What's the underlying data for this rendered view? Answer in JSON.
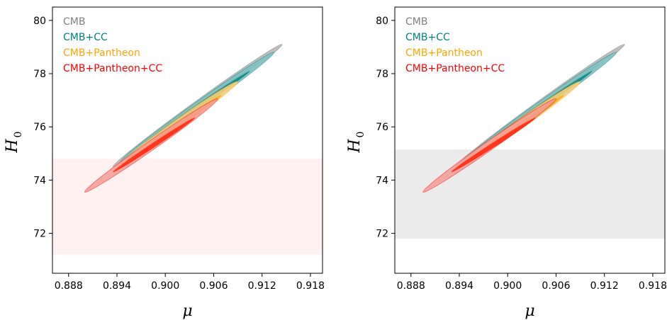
{
  "chart_data": [
    {
      "type": "contour",
      "title": "",
      "xlabel": "μ",
      "ylabel": {
        "main": "H",
        "sub": "0"
      },
      "xlim": [
        0.886,
        0.9195
      ],
      "ylim": [
        70.5,
        80.5
      ],
      "xticks": [
        {
          "value": 0.888,
          "label": "0.888"
        },
        {
          "value": 0.894,
          "label": "0.894"
        },
        {
          "value": 0.9,
          "label": "0.900"
        },
        {
          "value": 0.906,
          "label": "0.906"
        },
        {
          "value": 0.912,
          "label": "0.912"
        },
        {
          "value": 0.918,
          "label": "0.918"
        }
      ],
      "yticks": [
        {
          "value": 72,
          "label": "72"
        },
        {
          "value": 74,
          "label": "74"
        },
        {
          "value": 76,
          "label": "76"
        },
        {
          "value": 78,
          "label": "78"
        },
        {
          "value": 80,
          "label": "80"
        }
      ],
      "band": {
        "y": [
          71.2,
          74.8
        ],
        "color": "#fff0f1"
      },
      "legend_position": "top-left",
      "series": [
        {
          "name": "CMB",
          "color": "#808080",
          "fill_outer": "#b3b3b3",
          "fill_inner": "#8c8c8c",
          "start": [
            0.8935,
            74.5
          ],
          "end": [
            0.9145,
            79.1
          ],
          "inner_start": [
            0.8965,
            75.2
          ],
          "inner_end": [
            0.9115,
            78.4
          ]
        },
        {
          "name": "CMB+CC",
          "color": "#008080",
          "fill_outer": "#7fc6c6",
          "fill_inner": "#138a8a",
          "start": [
            0.8945,
            74.7
          ],
          "end": [
            0.9135,
            78.8
          ],
          "inner_start": [
            0.8975,
            75.4
          ],
          "inner_end": [
            0.9105,
            78.1
          ]
        },
        {
          "name": "CMB+Pantheon",
          "color": "#ffa500",
          "fill_outer": "#ffd27a",
          "fill_inner": "#f2b118",
          "start": [
            0.8945,
            74.6
          ],
          "end": [
            0.909,
            77.7
          ],
          "inner_start": [
            0.8975,
            75.2
          ],
          "inner_end": [
            0.907,
            77.2
          ]
        },
        {
          "name": "CMB+Pantheon+CC",
          "color": "#ff0000",
          "fill_outer": "#f79a95",
          "fill_inner": "#ff2a10",
          "start": [
            0.89,
            73.55
          ],
          "end": [
            0.9065,
            77.05
          ],
          "inner_start": [
            0.8935,
            74.3
          ],
          "inner_end": [
            0.9037,
            76.35
          ]
        }
      ]
    },
    {
      "type": "contour",
      "title": "",
      "xlabel": "μ",
      "ylabel": {
        "main": "H",
        "sub": "0"
      },
      "xlim": [
        0.886,
        0.9195
      ],
      "ylim": [
        70.5,
        80.5
      ],
      "xticks": [
        {
          "value": 0.888,
          "label": "0.888"
        },
        {
          "value": 0.894,
          "label": "0.894"
        },
        {
          "value": 0.9,
          "label": "0.900"
        },
        {
          "value": 0.906,
          "label": "0.906"
        },
        {
          "value": 0.912,
          "label": "0.912"
        },
        {
          "value": 0.918,
          "label": "0.918"
        }
      ],
      "yticks": [
        {
          "value": 72,
          "label": "72"
        },
        {
          "value": 74,
          "label": "74"
        },
        {
          "value": 76,
          "label": "76"
        },
        {
          "value": 78,
          "label": "78"
        },
        {
          "value": 80,
          "label": "80"
        }
      ],
      "band": {
        "y": [
          71.8,
          75.15
        ],
        "color": "#ebebeb"
      },
      "legend_position": "top-left",
      "series": [
        {
          "name": "CMB",
          "color": "#808080",
          "fill_outer": "#b3b3b3",
          "fill_inner": "#8c8c8c",
          "start": [
            0.8935,
            74.5
          ],
          "end": [
            0.9145,
            79.1
          ],
          "inner_start": [
            0.8965,
            75.2
          ],
          "inner_end": [
            0.9115,
            78.4
          ]
        },
        {
          "name": "CMB+CC",
          "color": "#008080",
          "fill_outer": "#7fc6c6",
          "fill_inner": "#138a8a",
          "start": [
            0.8945,
            74.7
          ],
          "end": [
            0.9135,
            78.8
          ],
          "inner_start": [
            0.8975,
            75.4
          ],
          "inner_end": [
            0.9105,
            78.1
          ]
        },
        {
          "name": "CMB+Pantheon",
          "color": "#ffa500",
          "fill_outer": "#ffd27a",
          "fill_inner": "#f2b118",
          "start": [
            0.8945,
            74.6
          ],
          "end": [
            0.909,
            77.7
          ],
          "inner_start": [
            0.8975,
            75.2
          ],
          "inner_end": [
            0.907,
            77.2
          ]
        },
        {
          "name": "CMB+Pantheon+CC",
          "color": "#ff0000",
          "fill_outer": "#f79a95",
          "fill_inner": "#ff2a10",
          "start": [
            0.8895,
            73.55
          ],
          "end": [
            0.906,
            77.05
          ],
          "inner_start": [
            0.893,
            74.3
          ],
          "inner_end": [
            0.9035,
            76.35
          ]
        }
      ]
    }
  ]
}
